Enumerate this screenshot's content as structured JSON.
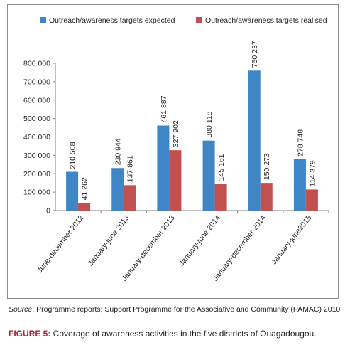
{
  "chart_data": {
    "type": "bar",
    "categories": [
      "June-december 2012",
      "January-june 2013",
      "January-december 2013",
      "January-june 2014",
      "January-december 2014",
      "January-june2015"
    ],
    "series": [
      {
        "name": "Outreach/awareness targets expected",
        "color": "#3f86c6",
        "values": [
          210508,
          230944,
          461887,
          380118,
          760237,
          278748
        ],
        "labels": [
          "210 508",
          "230 944",
          "461 887",
          "380 118",
          "760 237",
          "278 748"
        ]
      },
      {
        "name": "Outreach/awareness targets realised",
        "color": "#c2504e",
        "values": [
          41262,
          137861,
          327902,
          145161,
          150273,
          114379
        ],
        "labels": [
          "41 262",
          "137 861",
          "327 902",
          "145 161",
          "150 273",
          "114 379"
        ]
      }
    ],
    "ylim": [
      0,
      800000
    ],
    "yticks": [
      0,
      100000,
      200000,
      300000,
      400000,
      500000,
      600000,
      700000,
      800000
    ],
    "ytick_labels": [
      "0",
      "100 000",
      "200 000",
      "300 000",
      "400 000",
      "500 000",
      "600 000",
      "700 000",
      "800 000"
    ],
    "title": "",
    "xlabel": "",
    "ylabel": "",
    "grid": false,
    "legend_position": "top"
  },
  "source": {
    "label": "Source",
    "text": ": Programme reports; Support Programme for the Associative and Community (PAMAC) 2010"
  },
  "caption": {
    "label": "FIGURE 5:",
    "text": " Coverage of awareness activities in the five districts of Ouagadougou."
  }
}
